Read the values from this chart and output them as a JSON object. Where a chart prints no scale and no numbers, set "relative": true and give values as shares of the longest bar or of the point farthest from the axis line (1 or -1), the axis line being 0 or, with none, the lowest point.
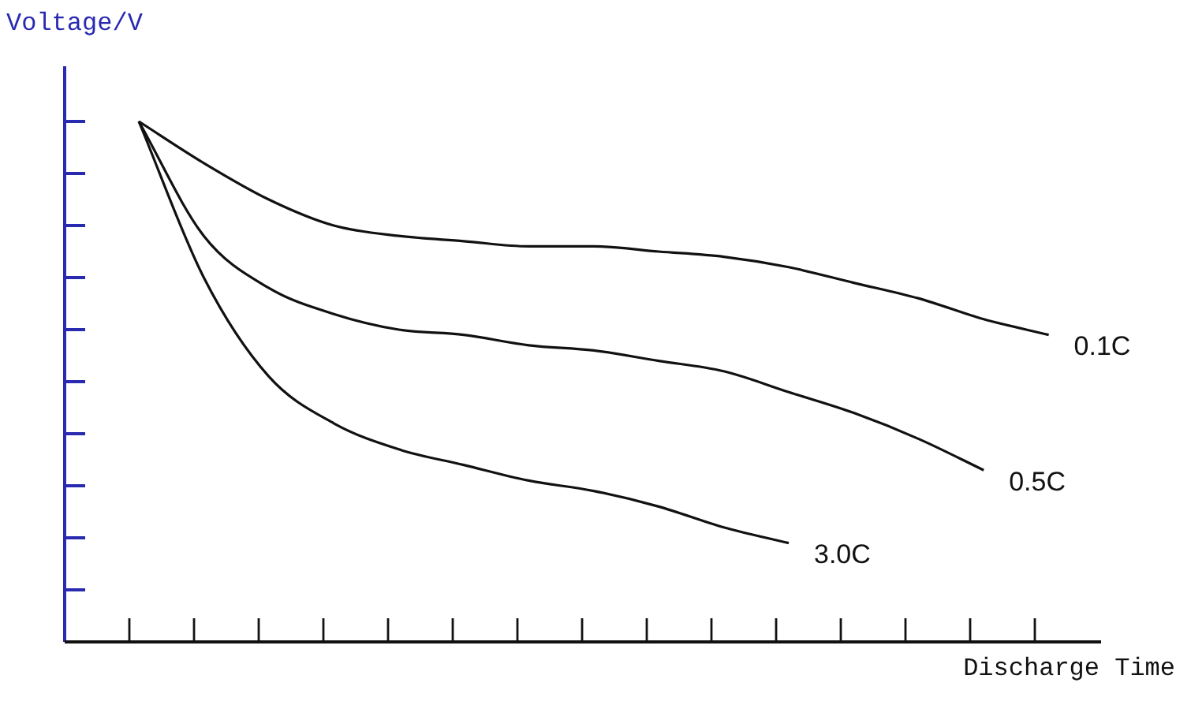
{
  "chart_data": {
    "type": "line",
    "xlabel": "Discharge Time",
    "ylabel": "Voltage/V",
    "relative": true,
    "marker": "none",
    "categories": [
      null,
      null,
      null,
      null,
      null,
      null,
      null,
      null,
      null,
      null,
      null,
      null,
      null,
      null,
      null
    ],
    "series": [
      {
        "name": "0.1C",
        "color": "#111111",
        "values": [
          1,
          0.92,
          0.85,
          0.8,
          0.78,
          0.77,
          0.76,
          0.76,
          0.75,
          0.74,
          0.72,
          0.69,
          0.66,
          0.62,
          0.59
        ]
      },
      {
        "name": "0.5C",
        "color": "#111111",
        "values": [
          1,
          0.78,
          0.68,
          0.63,
          0.6,
          0.59,
          0.57,
          0.56,
          0.54,
          0.52,
          0.48,
          0.44,
          0.39,
          0.33,
          null
        ]
      },
      {
        "name": "3.0C",
        "color": "#111111",
        "values": [
          1,
          0.7,
          0.51,
          0.42,
          0.37,
          0.34,
          0.31,
          0.29,
          0.26,
          0.22,
          0.19,
          null,
          null,
          null,
          null
        ]
      }
    ]
  }
}
